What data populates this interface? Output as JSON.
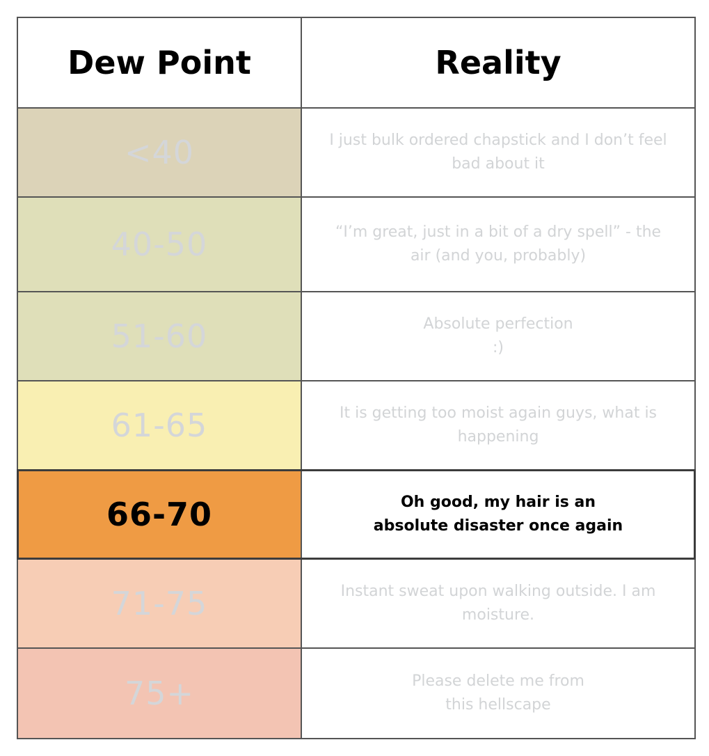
{
  "header": {
    "col1": "Dew Point",
    "col2": "Reality"
  },
  "rows": [
    {
      "range": "<40",
      "text": "I just bulk ordered chapstick and I don’t feel\nbad about it",
      "color": "#dcd3b8"
    },
    {
      "range": "40-50",
      "text": "“I’m great, just in a bit of a dry spell” - the\nair (and you, probably)",
      "color": "#dfdfb9"
    },
    {
      "range": "51-60",
      "text": "Absolute perfection\n:)",
      "color": "#dfdfb9"
    },
    {
      "range": "61-65",
      "text": "It is getting too moist again guys, what is\nhappening",
      "color": "#f9efb2"
    },
    {
      "range": "66-70",
      "text": "Oh good, my hair is an\nabsolute disaster once again",
      "color": "#ef9b44",
      "highlighted": true
    },
    {
      "range": "71-75",
      "text": "Instant sweat upon walking outside. I am\nmoisture.",
      "color": "#f7cdb5"
    },
    {
      "range": "75+",
      "text": "Please delete me from\nthis hellscape",
      "color": "#f3c4b3"
    }
  ]
}
